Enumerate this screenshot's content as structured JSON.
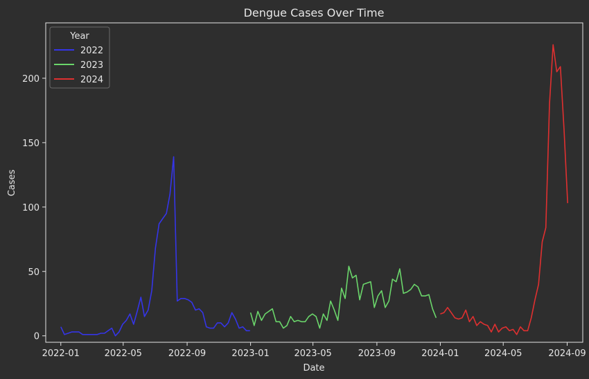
{
  "chart_data": {
    "type": "line",
    "title": "Dengue Cases Over Time",
    "xlabel": "Date",
    "ylabel": "Cases",
    "ylim": [
      -5,
      243
    ],
    "xlim": [
      "2021-12-03",
      "2024-10-01"
    ],
    "x_ticks": [
      "2022-01",
      "2022-05",
      "2022-09",
      "2023-01",
      "2023-05",
      "2023-09",
      "2024-01",
      "2024-05",
      "2024-09"
    ],
    "y_ticks": [
      0,
      50,
      100,
      150,
      200
    ],
    "grid": false,
    "legend": {
      "title": "Year",
      "position": "top-left"
    },
    "series": [
      {
        "name": "2022",
        "color": "#3535e8",
        "x": [
          "2022-01-01",
          "2022-01-08",
          "2022-01-15",
          "2022-01-22",
          "2022-01-29",
          "2022-02-05",
          "2022-02-12",
          "2022-02-19",
          "2022-02-26",
          "2022-03-05",
          "2022-03-12",
          "2022-03-19",
          "2022-03-26",
          "2022-04-02",
          "2022-04-09",
          "2022-04-16",
          "2022-04-23",
          "2022-04-30",
          "2022-05-07",
          "2022-05-14",
          "2022-05-21",
          "2022-05-28",
          "2022-06-04",
          "2022-06-11",
          "2022-06-18",
          "2022-06-25",
          "2022-07-02",
          "2022-07-09",
          "2022-07-16",
          "2022-07-23",
          "2022-07-30",
          "2022-08-06",
          "2022-08-13",
          "2022-08-20",
          "2022-08-27",
          "2022-09-03",
          "2022-09-10",
          "2022-09-17",
          "2022-09-24",
          "2022-10-01",
          "2022-10-08",
          "2022-10-15",
          "2022-10-22",
          "2022-10-29",
          "2022-11-05",
          "2022-11-12",
          "2022-11-19",
          "2022-11-26",
          "2022-12-03",
          "2022-12-10",
          "2022-12-17",
          "2022-12-24",
          "2022-12-31"
        ],
        "y": [
          7,
          1,
          2,
          3,
          3,
          3,
          1,
          1,
          1,
          1,
          1,
          2,
          2,
          4,
          6,
          0,
          3,
          9,
          12,
          17,
          9,
          19,
          30,
          15,
          20,
          35,
          68,
          87,
          91,
          95,
          110,
          139,
          27,
          29,
          29,
          28,
          26,
          20,
          21,
          18,
          7,
          6,
          6,
          10,
          10,
          7,
          10,
          18,
          13,
          6,
          7,
          4,
          4
        ]
      },
      {
        "name": "2023",
        "color": "#6bd66b",
        "x": [
          "2023-01-01",
          "2023-01-08",
          "2023-01-15",
          "2023-01-22",
          "2023-01-29",
          "2023-02-05",
          "2023-02-12",
          "2023-02-19",
          "2023-02-26",
          "2023-03-05",
          "2023-03-12",
          "2023-03-19",
          "2023-03-26",
          "2023-04-02",
          "2023-04-09",
          "2023-04-16",
          "2023-04-23",
          "2023-04-30",
          "2023-05-07",
          "2023-05-14",
          "2023-05-21",
          "2023-05-28",
          "2023-06-04",
          "2023-06-11",
          "2023-06-18",
          "2023-06-25",
          "2023-07-02",
          "2023-07-09",
          "2023-07-16",
          "2023-07-23",
          "2023-07-30",
          "2023-08-06",
          "2023-08-13",
          "2023-08-20",
          "2023-08-27",
          "2023-09-03",
          "2023-09-10",
          "2023-09-17",
          "2023-09-24",
          "2023-10-01",
          "2023-10-08",
          "2023-10-15",
          "2023-10-22",
          "2023-10-29",
          "2023-11-05",
          "2023-11-12",
          "2023-11-19",
          "2023-11-26",
          "2023-12-03",
          "2023-12-10",
          "2023-12-17",
          "2023-12-24"
        ],
        "y": [
          18,
          8,
          19,
          12,
          17,
          19,
          21,
          11,
          11,
          6,
          8,
          15,
          11,
          12,
          11,
          11,
          15,
          17,
          15,
          6,
          17,
          12,
          27,
          20,
          12,
          37,
          29,
          54,
          45,
          47,
          28,
          40,
          41,
          42,
          22,
          31,
          35,
          22,
          27,
          44,
          42,
          52,
          33,
          34,
          36,
          40,
          38,
          31,
          31,
          32,
          21,
          14
        ]
      },
      {
        "name": "2024",
        "color": "#e03030",
        "x": [
          "2024-01-01",
          "2024-01-08",
          "2024-01-15",
          "2024-01-22",
          "2024-01-29",
          "2024-02-05",
          "2024-02-12",
          "2024-02-19",
          "2024-02-26",
          "2024-03-04",
          "2024-03-11",
          "2024-03-18",
          "2024-03-25",
          "2024-04-01",
          "2024-04-08",
          "2024-04-15",
          "2024-04-22",
          "2024-04-29",
          "2024-05-06",
          "2024-05-13",
          "2024-05-20",
          "2024-05-27",
          "2024-06-03",
          "2024-06-10",
          "2024-06-17",
          "2024-06-24",
          "2024-07-01",
          "2024-07-08",
          "2024-07-15",
          "2024-07-22",
          "2024-07-29",
          "2024-08-05",
          "2024-08-12",
          "2024-08-19",
          "2024-08-26",
          "2024-09-02"
        ],
        "y": [
          17,
          18,
          22,
          18,
          14,
          13,
          14,
          20,
          11,
          15,
          8,
          11,
          9,
          8,
          3,
          9,
          3,
          6,
          7,
          4,
          5,
          1,
          7,
          4,
          4,
          14,
          28,
          40,
          73,
          84,
          180,
          226,
          205,
          209,
          160,
          103
        ]
      }
    ]
  }
}
